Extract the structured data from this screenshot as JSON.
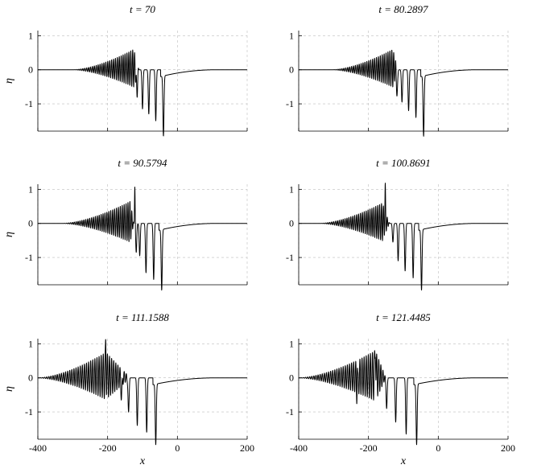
{
  "figure": {
    "panels": [
      {
        "title": "t = 70",
        "show_ylabel": true,
        "show_xticks": false
      },
      {
        "title": "t = 80.2897",
        "show_ylabel": false,
        "show_xticks": false
      },
      {
        "title": "t = 90.5794",
        "show_ylabel": true,
        "show_xticks": false
      },
      {
        "title": "t = 100.8691",
        "show_ylabel": false,
        "show_xticks": false
      },
      {
        "title": "t = 111.1588",
        "show_ylabel": true,
        "show_xticks": true
      },
      {
        "title": "t = 121.4485",
        "show_ylabel": false,
        "show_xticks": true
      }
    ],
    "ylabel": "η",
    "xlabel": "x",
    "xticks": [
      "-400",
      "-200",
      "0",
      "200"
    ],
    "yticks": [
      "1",
      "0",
      "-1"
    ]
  },
  "chart_data": [
    {
      "type": "line",
      "title": "t = 70",
      "xlabel": "",
      "ylabel": "η",
      "xlim": [
        -400,
        200
      ],
      "ylim": [
        -1.8,
        1.15
      ],
      "grid": true,
      "series": [
        {
          "line_color": "#000000",
          "wavepacket": {
            "x_start": -300,
            "x_end": -110,
            "x_peak": -125,
            "peak_amplitude": 0.6,
            "wavelength": 5.5
          },
          "dips": [
            {
              "x": -40,
              "depth": -1.77
            },
            {
              "x": -62,
              "depth": -1.5
            },
            {
              "x": -82,
              "depth": -1.3
            },
            {
              "x": -100,
              "depth": -1.15
            },
            {
              "x": -116,
              "depth": -0.8
            }
          ],
          "tail": {
            "x_start": -40,
            "x_end": 110,
            "value_at_start": -0.2
          }
        }
      ]
    },
    {
      "type": "line",
      "title": "t = 80.2897",
      "xlabel": "",
      "ylabel": "η",
      "xlim": [
        -400,
        200
      ],
      "ylim": [
        -1.8,
        1.15
      ],
      "grid": true,
      "series": [
        {
          "line_color": "#000000",
          "wavepacket": {
            "x_start": -305,
            "x_end": -115,
            "x_peak": -130,
            "peak_amplitude": 0.6,
            "wavelength": 5.5
          },
          "dips": [
            {
              "x": -42,
              "depth": -1.77
            },
            {
              "x": -64,
              "depth": -1.4
            },
            {
              "x": -85,
              "depth": -1.2
            },
            {
              "x": -104,
              "depth": -0.95
            },
            {
              "x": -118,
              "depth": -0.75
            }
          ],
          "tail": {
            "x_start": -42,
            "x_end": 110,
            "value_at_start": -0.2
          }
        }
      ]
    },
    {
      "type": "line",
      "title": "t = 90.5794",
      "xlabel": "",
      "ylabel": "η",
      "xlim": [
        -400,
        200
      ],
      "ylim": [
        -1.8,
        1.15
      ],
      "grid": true,
      "series": [
        {
          "line_color": "#000000",
          "wavepacket": {
            "x_start": -330,
            "x_end": -125,
            "x_peak": -135,
            "peak_amplitude": 0.65,
            "wavelength": 5.5
          },
          "spikes": [
            {
              "x": -122,
              "height": 1.1
            }
          ],
          "dips": [
            {
              "x": -45,
              "depth": -1.78
            },
            {
              "x": -68,
              "depth": -1.65
            },
            {
              "x": -90,
              "depth": -1.45
            },
            {
              "x": -108,
              "depth": -0.95
            },
            {
              "x": -118,
              "depth": -0.85
            }
          ],
          "tail": {
            "x_start": -45,
            "x_end": 110,
            "value_at_start": -0.2
          }
        }
      ]
    },
    {
      "type": "line",
      "title": "t = 100.8691",
      "xlabel": "",
      "ylabel": "η",
      "xlim": [
        -400,
        200
      ],
      "ylim": [
        -1.8,
        1.15
      ],
      "grid": true,
      "series": [
        {
          "line_color": "#000000",
          "wavepacket": {
            "x_start": -340,
            "x_end": -140,
            "x_peak": -160,
            "peak_amplitude": 0.6,
            "wavelength": 5.5
          },
          "spikes": [
            {
              "x": -152,
              "height": 0.85
            }
          ],
          "dips": [
            {
              "x": -48,
              "depth": -1.78
            },
            {
              "x": -72,
              "depth": -1.6
            },
            {
              "x": -95,
              "depth": -1.4
            },
            {
              "x": -115,
              "depth": -1.1
            },
            {
              "x": -130,
              "depth": -0.55
            }
          ],
          "tail": {
            "x_start": -48,
            "x_end": 110,
            "value_at_start": -0.2
          }
        }
      ]
    },
    {
      "type": "line",
      "title": "t = 111.1588",
      "xlabel": "x",
      "ylabel": "η",
      "xlim": [
        -400,
        200
      ],
      "ylim": [
        -1.8,
        1.15
      ],
      "grid": true,
      "series": [
        {
          "line_color": "#000000",
          "wavepacket": {
            "x_start": -400,
            "x_end": -135,
            "x_peak": -205,
            "peak_amplitude": 0.75,
            "wavelength": 6
          },
          "spikes": [
            {
              "x": -205,
              "height": 0.83
            }
          ],
          "dips": [
            {
              "x": -62,
              "depth": -1.78
            },
            {
              "x": -88,
              "depth": -1.6
            },
            {
              "x": -115,
              "depth": -1.4
            },
            {
              "x": -140,
              "depth": -1.05
            },
            {
              "x": -160,
              "depth": -0.55
            }
          ],
          "tail": {
            "x_start": -62,
            "x_end": 110,
            "value_at_start": -0.2
          }
        }
      ]
    },
    {
      "type": "line",
      "title": "t = 121.4485",
      "xlabel": "x",
      "ylabel": "η",
      "xlim": [
        -400,
        200
      ],
      "ylim": [
        -1.8,
        1.15
      ],
      "grid": true,
      "series": [
        {
          "line_color": "#000000",
          "wavepacket": {
            "x_start": -400,
            "x_end": -150,
            "x_peak": -180,
            "peak_amplitude": 0.8,
            "wavelength": 6
          },
          "spikes": [
            {
              "x": -180,
              "height": 1.1
            },
            {
              "x": -232,
              "height": 0.95
            }
          ],
          "dips": [
            {
              "x": -62,
              "depth": -1.78
            },
            {
              "x": -92,
              "depth": -1.65
            },
            {
              "x": -122,
              "depth": -1.3
            },
            {
              "x": -148,
              "depth": -0.9
            },
            {
              "x": -232,
              "depth": -0.85
            }
          ],
          "tail": {
            "x_start": -62,
            "x_end": 110,
            "value_at_start": -0.2
          }
        }
      ]
    }
  ]
}
